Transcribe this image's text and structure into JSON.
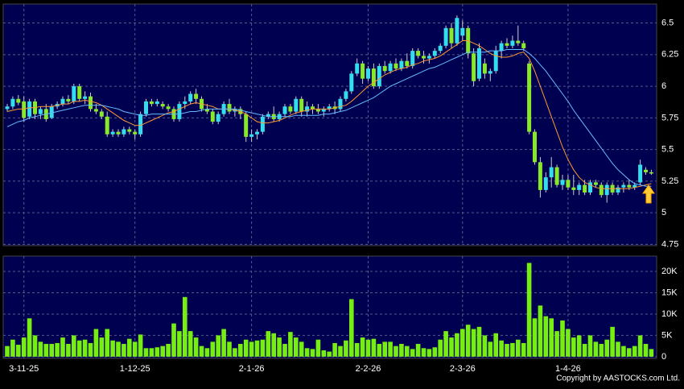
{
  "chart_data": [
    {
      "type": "candlestick",
      "categories": [
        null,
        null,
        null,
        "3-11-25",
        null,
        null,
        null,
        null,
        null,
        null,
        null,
        null,
        null,
        null,
        null,
        null,
        null,
        null,
        null,
        null,
        null,
        null,
        null,
        "1-12-25",
        null,
        null,
        null,
        null,
        null,
        null,
        null,
        null,
        null,
        null,
        null,
        null,
        null,
        null,
        null,
        null,
        null,
        null,
        null,
        null,
        "2-1-26",
        null,
        null,
        null,
        null,
        null,
        null,
        null,
        null,
        null,
        null,
        null,
        null,
        null,
        null,
        null,
        null,
        null,
        null,
        null,
        null,
        "2-2-26",
        null,
        null,
        null,
        null,
        null,
        null,
        null,
        null,
        null,
        null,
        null,
        null,
        null,
        null,
        null,
        null,
        "2-3-26",
        null,
        null,
        null,
        null,
        null,
        null,
        null,
        null,
        null,
        null,
        null,
        null,
        null,
        null,
        null,
        null,
        null,
        null,
        "1-4-26",
        null,
        null,
        null,
        null,
        null,
        null,
        null,
        null,
        null,
        null,
        null,
        null,
        null,
        null,
        null
      ],
      "open": [
        5.82,
        5.84,
        5.9,
        5.88,
        5.76,
        5.88,
        5.78,
        5.82,
        5.75,
        5.84,
        5.86,
        5.9,
        5.88,
        6.0,
        5.9,
        5.92,
        5.82,
        5.8,
        5.76,
        5.62,
        5.64,
        5.62,
        5.66,
        5.64,
        5.62,
        5.78,
        5.88,
        5.86,
        5.86,
        5.84,
        5.82,
        5.74,
        5.86,
        5.88,
        5.94,
        5.9,
        5.82,
        5.8,
        5.72,
        5.78,
        5.86,
        5.8,
        5.82,
        5.78,
        5.6,
        5.62,
        5.64,
        5.76,
        5.78,
        5.74,
        5.78,
        5.84,
        5.8,
        5.9,
        5.8,
        5.84,
        5.82,
        5.8,
        5.82,
        5.84,
        5.82,
        5.9,
        5.96,
        6.1,
        6.18,
        6.06,
        6.14,
        6.0,
        6.16,
        6.12,
        6.18,
        6.14,
        6.2,
        6.16,
        6.28,
        6.24,
        6.22,
        6.24,
        6.28,
        6.32,
        6.46,
        6.34,
        6.4,
        6.46,
        6.26,
        6.06,
        6.18,
        6.1,
        6.12,
        6.28,
        6.34,
        6.32,
        6.36,
        6.34,
        6.18,
        5.64,
        5.4,
        5.18,
        5.28,
        5.36,
        5.22,
        5.26,
        5.2,
        5.18,
        5.22,
        5.16,
        5.24,
        5.22,
        5.14,
        5.22,
        5.16,
        5.2,
        5.22,
        5.2,
        5.24,
        5.34,
        5.32
      ],
      "high": [
        5.86,
        5.92,
        5.93,
        5.92,
        5.9,
        5.9,
        5.84,
        5.86,
        5.86,
        5.88,
        5.92,
        5.93,
        6.02,
        6.02,
        5.96,
        5.95,
        5.86,
        5.82,
        5.8,
        5.66,
        5.66,
        5.68,
        5.68,
        5.66,
        5.8,
        5.9,
        5.9,
        5.9,
        5.88,
        5.86,
        5.84,
        5.88,
        5.92,
        5.96,
        5.98,
        5.92,
        5.86,
        5.82,
        5.8,
        5.88,
        5.9,
        5.84,
        5.84,
        5.8,
        5.66,
        5.66,
        5.78,
        5.8,
        5.84,
        5.8,
        5.86,
        5.86,
        5.92,
        5.92,
        5.88,
        5.86,
        5.86,
        5.84,
        5.86,
        5.88,
        5.92,
        5.98,
        6.12,
        6.22,
        6.2,
        6.16,
        6.18,
        6.18,
        6.2,
        6.2,
        6.22,
        6.22,
        6.26,
        6.3,
        6.3,
        6.28,
        6.26,
        6.3,
        6.34,
        6.48,
        6.5,
        6.56,
        6.52,
        6.48,
        6.3,
        6.34,
        6.22,
        6.14,
        6.32,
        6.36,
        6.38,
        6.4,
        6.48,
        6.36,
        6.2,
        5.66,
        5.44,
        5.32,
        5.44,
        5.38,
        5.3,
        5.3,
        5.3,
        5.24,
        5.26,
        5.26,
        5.26,
        5.24,
        5.24,
        5.24,
        5.22,
        5.24,
        5.26,
        5.24,
        5.42,
        5.36,
        5.34
      ],
      "low": [
        5.8,
        5.82,
        5.85,
        5.72,
        5.74,
        5.74,
        5.74,
        5.72,
        5.74,
        5.82,
        5.84,
        5.86,
        5.86,
        5.88,
        5.86,
        5.8,
        5.78,
        5.74,
        5.6,
        5.6,
        5.6,
        5.6,
        5.62,
        5.58,
        5.6,
        5.76,
        5.84,
        5.84,
        5.82,
        5.8,
        5.72,
        5.72,
        5.82,
        5.86,
        5.86,
        5.8,
        5.78,
        5.7,
        5.7,
        5.76,
        5.78,
        5.76,
        5.74,
        5.56,
        5.56,
        5.58,
        5.62,
        5.74,
        5.72,
        5.72,
        5.76,
        5.78,
        5.78,
        5.76,
        5.76,
        5.78,
        5.78,
        5.76,
        5.8,
        5.78,
        5.8,
        5.88,
        5.94,
        6.08,
        6.02,
        6.04,
        5.98,
        5.98,
        6.1,
        6.1,
        6.12,
        6.12,
        6.14,
        6.14,
        6.22,
        6.18,
        6.18,
        6.22,
        6.26,
        6.3,
        6.3,
        6.32,
        6.36,
        6.22,
        6.0,
        6.04,
        6.06,
        6.04,
        6.1,
        6.22,
        6.3,
        6.3,
        6.32,
        6.28,
        5.62,
        5.38,
        5.12,
        5.16,
        5.2,
        5.2,
        5.18,
        5.18,
        5.14,
        5.14,
        5.14,
        5.14,
        5.2,
        5.12,
        5.08,
        5.14,
        5.14,
        5.16,
        5.18,
        5.18,
        5.22,
        5.3,
        5.3
      ],
      "close": [
        5.84,
        5.9,
        5.87,
        5.75,
        5.88,
        5.78,
        5.82,
        5.74,
        5.84,
        5.86,
        5.9,
        5.88,
        6.0,
        5.9,
        5.92,
        5.82,
        5.8,
        5.76,
        5.62,
        5.64,
        5.62,
        5.66,
        5.64,
        5.62,
        5.78,
        5.88,
        5.86,
        5.88,
        5.84,
        5.82,
        5.74,
        5.86,
        5.88,
        5.94,
        5.9,
        5.82,
        5.8,
        5.72,
        5.78,
        5.86,
        5.8,
        5.82,
        5.78,
        5.6,
        5.62,
        5.64,
        5.76,
        5.78,
        5.74,
        5.78,
        5.84,
        5.8,
        5.9,
        5.8,
        5.84,
        5.82,
        5.8,
        5.82,
        5.84,
        5.82,
        5.9,
        5.96,
        6.1,
        6.18,
        6.06,
        6.14,
        6.0,
        6.16,
        6.12,
        6.18,
        6.14,
        6.2,
        6.16,
        6.28,
        6.24,
        6.22,
        6.24,
        6.28,
        6.32,
        6.46,
        6.34,
        6.54,
        6.46,
        6.26,
        6.04,
        6.3,
        6.1,
        6.12,
        6.28,
        6.34,
        6.32,
        6.36,
        6.34,
        6.3,
        5.64,
        5.4,
        5.18,
        5.28,
        5.36,
        5.22,
        5.26,
        5.2,
        5.18,
        5.22,
        5.16,
        5.24,
        5.22,
        5.14,
        5.22,
        5.16,
        5.2,
        5.22,
        5.2,
        5.22,
        5.38,
        5.32,
        5.31
      ],
      "up_color": "#33ddee",
      "down_color": "#88e82a",
      "series": [
        {
          "color": "#ff9933",
          "values": [
            5.8,
            5.81,
            5.82,
            5.82,
            5.83,
            5.83,
            5.84,
            5.84,
            5.84,
            5.85,
            5.86,
            5.86,
            5.88,
            5.88,
            5.89,
            5.88,
            5.87,
            5.85,
            5.82,
            5.79,
            5.76,
            5.73,
            5.71,
            5.69,
            5.69,
            5.71,
            5.73,
            5.75,
            5.77,
            5.79,
            5.8,
            5.82,
            5.84,
            5.86,
            5.87,
            5.86,
            5.85,
            5.84,
            5.82,
            5.82,
            5.82,
            5.81,
            5.8,
            5.78,
            5.75,
            5.72,
            5.71,
            5.71,
            5.72,
            5.73,
            5.75,
            5.77,
            5.79,
            5.8,
            5.81,
            5.82,
            5.82,
            5.82,
            5.82,
            5.83,
            5.84,
            5.85,
            5.88,
            5.92,
            5.96,
            6.0,
            6.03,
            6.06,
            6.09,
            6.11,
            6.13,
            6.14,
            6.15,
            6.17,
            6.18,
            6.2,
            6.21,
            6.22,
            6.24,
            6.27,
            6.3,
            6.33,
            6.36,
            6.36,
            6.34,
            6.32,
            6.29,
            6.26,
            6.24,
            6.23,
            6.23,
            6.24,
            6.26,
            6.27,
            6.22,
            6.12,
            6.0,
            5.88,
            5.76,
            5.64,
            5.52,
            5.42,
            5.34,
            5.28,
            5.24,
            5.22,
            5.2,
            5.19,
            5.19,
            5.19,
            5.19,
            5.19,
            5.19,
            5.2,
            5.21,
            5.22,
            5.23
          ]
        },
        {
          "color": "#66bbff",
          "values": [
            5.68,
            5.7,
            5.72,
            5.73,
            5.75,
            5.76,
            5.77,
            5.78,
            5.79,
            5.8,
            5.81,
            5.82,
            5.83,
            5.84,
            5.85,
            5.85,
            5.85,
            5.85,
            5.84,
            5.83,
            5.82,
            5.8,
            5.79,
            5.78,
            5.77,
            5.77,
            5.78,
            5.78,
            5.78,
            5.78,
            5.78,
            5.78,
            5.79,
            5.8,
            5.8,
            5.81,
            5.82,
            5.82,
            5.82,
            5.82,
            5.82,
            5.82,
            5.81,
            5.8,
            5.79,
            5.78,
            5.77,
            5.76,
            5.76,
            5.76,
            5.76,
            5.76,
            5.77,
            5.77,
            5.77,
            5.77,
            5.77,
            5.78,
            5.78,
            5.79,
            5.8,
            5.81,
            5.83,
            5.85,
            5.87,
            5.89,
            5.91,
            5.94,
            5.97,
            6.0,
            6.02,
            6.04,
            6.06,
            6.08,
            6.1,
            6.12,
            6.14,
            6.15,
            6.17,
            6.19,
            6.21,
            6.23,
            6.25,
            6.27,
            6.27,
            6.27,
            6.27,
            6.28,
            6.28,
            6.28,
            6.29,
            6.29,
            6.29,
            6.29,
            6.26,
            6.22,
            6.17,
            6.12,
            6.06,
            6.0,
            5.94,
            5.88,
            5.81,
            5.75,
            5.69,
            5.63,
            5.57,
            5.51,
            5.45,
            5.39,
            5.34,
            5.3,
            5.26,
            5.23,
            5.22,
            5.21,
            5.21
          ]
        }
      ],
      "ylim": [
        4.74,
        6.65
      ],
      "yticks": [
        4.75,
        5,
        5.25,
        5.5,
        5.75,
        6,
        6.25,
        6.5
      ],
      "grid": true
    },
    {
      "type": "bar",
      "color": "#77ee11",
      "values": [
        2500,
        4000,
        2800,
        4500,
        9000,
        5000,
        3500,
        3000,
        3000,
        3200,
        4500,
        3000,
        5000,
        3800,
        4000,
        3200,
        6500,
        4500,
        6500,
        3800,
        3500,
        3000,
        4200,
        3500,
        5200,
        2000,
        2000,
        2200,
        2500,
        3000,
        7800,
        6000,
        14000,
        6000,
        4500,
        2500,
        2000,
        3500,
        5000,
        6500,
        3500,
        2000,
        3000,
        4000,
        3500,
        3800,
        4000,
        6000,
        5500,
        4500,
        3000,
        5800,
        4500,
        3500,
        2000,
        1800,
        4000,
        1500,
        1200,
        3200,
        2500,
        3800,
        13500,
        3200,
        4500,
        4000,
        4200,
        3000,
        3500,
        3500,
        2500,
        3000,
        2500,
        1800,
        3000,
        2000,
        1800,
        2200,
        4000,
        6000,
        4500,
        5500,
        6500,
        7500,
        6500,
        7000,
        5000,
        3500,
        5500,
        3800,
        3000,
        3200,
        4000,
        3200,
        22000,
        9000,
        12000,
        9500,
        9000,
        6000,
        8500,
        6500,
        4500,
        5000,
        3000,
        5000,
        3500,
        3000,
        4000,
        7000,
        3500,
        2500,
        2000,
        2500,
        5000,
        3000,
        1800
      ],
      "ylim": [
        -400,
        23600
      ],
      "yticks": [
        0,
        {
          "value": 5000,
          "label": "5K"
        },
        {
          "value": 10000,
          "label": "10K"
        },
        {
          "value": 15000,
          "label": "15K"
        },
        {
          "value": 20000,
          "label": "20K"
        }
      ],
      "grid": true
    }
  ],
  "copyright": "Copyright by AASTOCKS.com Ltd."
}
